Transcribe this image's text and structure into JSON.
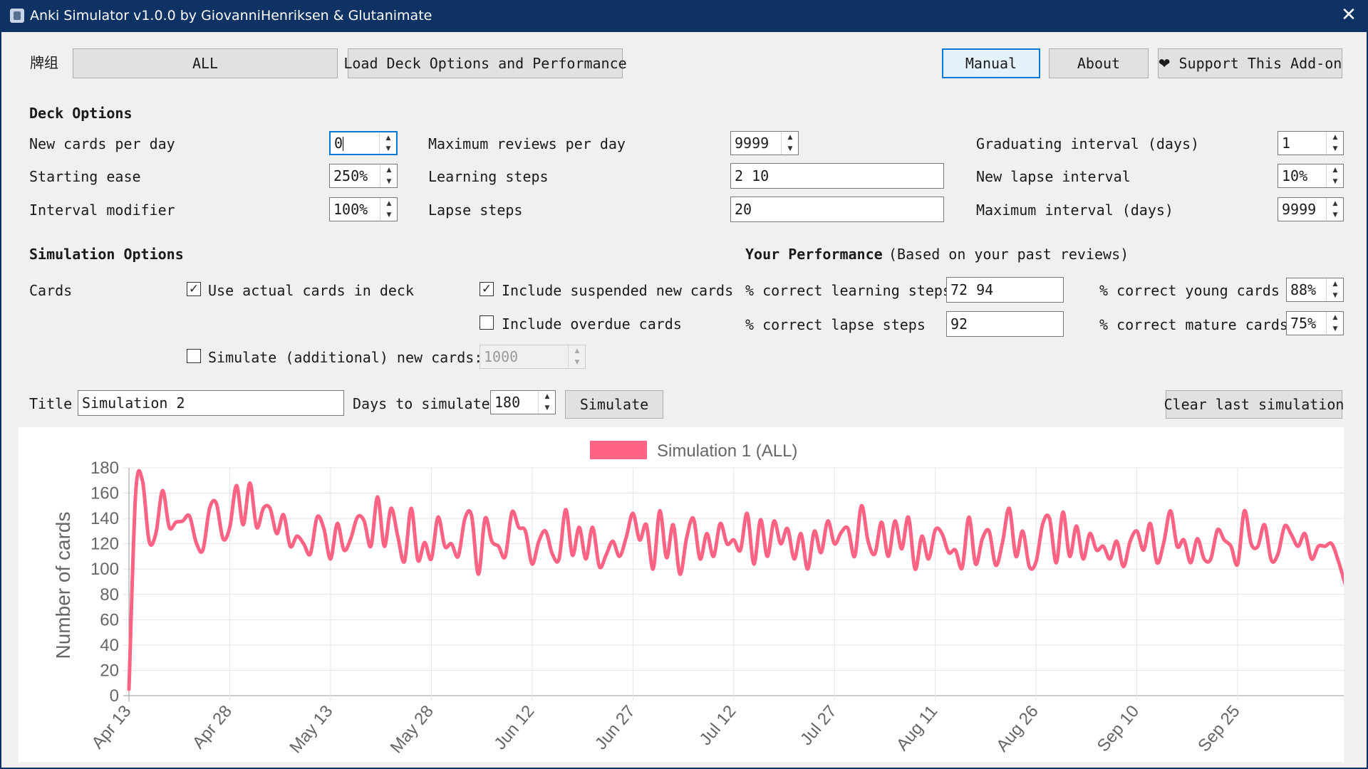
{
  "window": {
    "title": "Anki Simulator v1.0.0 by GiovanniHenriksen & Glutanimate",
    "close_glyph": "✕"
  },
  "deck_selector": {
    "label": "牌组",
    "value": "ALL"
  },
  "toolbar": {
    "load_label": "Load Deck Options and Performance",
    "manual_label": "Manual",
    "about_label": "About",
    "support_label": "Support This Add-on",
    "support_icon": "heart-icon"
  },
  "deck_options": {
    "heading": "Deck Options",
    "new_cards_per_day": {
      "label": "New cards per day",
      "value": "0"
    },
    "starting_ease": {
      "label": "Starting ease",
      "value": "250%"
    },
    "interval_modifier": {
      "label": "Interval modifier",
      "value": "100%"
    },
    "max_reviews_per_day": {
      "label": "Maximum reviews per day",
      "value": "9999"
    },
    "learning_steps": {
      "label": "Learning steps",
      "value": "2 10"
    },
    "lapse_steps": {
      "label": "Lapse steps",
      "value": "20"
    },
    "graduating_interval": {
      "label": "Graduating interval (days)",
      "value": "1"
    },
    "new_lapse_interval": {
      "label": "New lapse interval",
      "value": "10%"
    },
    "max_interval": {
      "label": "Maximum interval (days)",
      "value": "9999"
    }
  },
  "simulation_options": {
    "heading": "Simulation Options",
    "cards_label": "Cards",
    "use_actual_cards": {
      "label": "Use actual cards in deck",
      "checked": true
    },
    "include_suspended": {
      "label": "Include suspended new cards",
      "checked": true
    },
    "include_overdue": {
      "label": "Include overdue cards",
      "checked": false
    },
    "simulate_additional": {
      "label": "Simulate (additional) new cards:",
      "checked": false,
      "value": "1000"
    }
  },
  "performance": {
    "heading": "Your Performance",
    "subheading": "(Based on your past reviews)",
    "correct_learning": {
      "label": "% correct learning steps",
      "value": "72 94"
    },
    "correct_lapse": {
      "label": "% correct lapse steps",
      "value": "92"
    },
    "correct_young": {
      "label": "% correct young cards",
      "value": "88%"
    },
    "correct_mature": {
      "label": "% correct mature cards",
      "value": "75%"
    }
  },
  "run": {
    "title_label": "Title",
    "title_value": "Simulation 2",
    "days_label": "Days to simulate",
    "days_value": "180",
    "simulate_label": "Simulate",
    "clear_label": "Clear last simulation"
  },
  "chart_data": {
    "type": "line",
    "title": "",
    "xlabel": "",
    "ylabel": "Number of cards",
    "ylim": [
      0,
      180
    ],
    "yticks": [
      0,
      20,
      40,
      60,
      80,
      100,
      120,
      140,
      160,
      180
    ],
    "xticks": [
      "Apr 13",
      "Apr 28",
      "May 13",
      "May 28",
      "Jun 12",
      "Jun 27",
      "Jul 12",
      "Jul 27",
      "Aug 11",
      "Aug 26",
      "Sep 10",
      "Sep 25"
    ],
    "x_start": "Apr 13",
    "grid": true,
    "legend": "top-center",
    "series": [
      {
        "name": "Simulation 1 (ALL)",
        "color": "#ff6384",
        "values": [
          5,
          160,
          170,
          122,
          128,
          162,
          133,
          137,
          138,
          142,
          121,
          115,
          148,
          152,
          124,
          133,
          166,
          135,
          168,
          133,
          148,
          148,
          128,
          143,
          118,
          126,
          120,
          112,
          141,
          132,
          108,
          136,
          115,
          124,
          141,
          138,
          118,
          157,
          118,
          148,
          126,
          106,
          148,
          107,
          121,
          108,
          141,
          118,
          120,
          110,
          140,
          142,
          96,
          140,
          122,
          118,
          110,
          145,
          133,
          130,
          104,
          122,
          130,
          112,
          108,
          147,
          111,
          133,
          108,
          133,
          102,
          111,
          122,
          110,
          125,
          144,
          123,
          135,
          100,
          146,
          109,
          135,
          96,
          125,
          140,
          108,
          128,
          110,
          136,
          120,
          123,
          115,
          144,
          104,
          139,
          110,
          138,
          120,
          132,
          108,
          128,
          100,
          130,
          113,
          138,
          120,
          129,
          132,
          110,
          150,
          122,
          112,
          137,
          110,
          138,
          116,
          141,
          100,
          126,
          108,
          131,
          128,
          113,
          115,
          101,
          141,
          104,
          124,
          130,
          103,
          121,
          148,
          110,
          130,
          102,
          106,
          136,
          140,
          105,
          145,
          110,
          134,
          108,
          128,
          115,
          118,
          108,
          122,
          102,
          122,
          130,
          115,
          136,
          105,
          121,
          146,
          118,
          123,
          105,
          124,
          108,
          108,
          131,
          123,
          118,
          104,
          146,
          120,
          118,
          135,
          107,
          112,
          134,
          127,
          118,
          128,
          108,
          118,
          118,
          120,
          106,
          88
        ]
      }
    ]
  }
}
